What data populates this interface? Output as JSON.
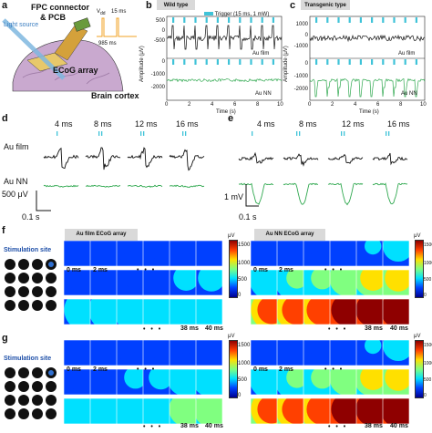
{
  "panels": {
    "a": {
      "letter": "a",
      "labels": {
        "light_source": "Light source",
        "fpc": "FPC connector",
        "pcb": "& PCB",
        "vdd": "V",
        "vdd_sub": "dd",
        "ms15": "15 ms",
        "ms985": "985 ms",
        "ecog": "ECoG array",
        "cortex": "Brain cortex"
      }
    },
    "b": {
      "letter": "b",
      "title": "Wild type",
      "legend_trigger": "Trigger (15 ms, 1 mW)",
      "ylabel": "Amplitude (μV)",
      "xlabel": "Time (s)",
      "yticks_top": [
        "500",
        "0",
        "-500"
      ],
      "yticks_bottom": [
        "0",
        "-1000",
        "-2000"
      ],
      "xticks": [
        "0",
        "2",
        "4",
        "6",
        "8",
        "10"
      ],
      "trace_top": "Au film",
      "trace_bottom": "Au NN"
    },
    "c": {
      "letter": "c",
      "title": "Transgenic type",
      "yticks_top": [
        "1000",
        "0",
        "-1000"
      ],
      "yticks_bottom": [
        "0",
        "-1000",
        "-2000"
      ],
      "xticks": [
        "0",
        "2",
        "4",
        "6",
        "8",
        "10"
      ],
      "ylabel": "Amplitude (μV)",
      "xlabel": "Time (s)",
      "trace_top": "Au film",
      "trace_bottom": "Au NN"
    },
    "d": {
      "letter": "d",
      "times": [
        "4 ms",
        "8 ms",
        "12 ms",
        "16 ms"
      ],
      "row_top": "Au film",
      "row_bottom": "Au NN",
      "scale_v": "500 μV",
      "scale_t": "0.1 s"
    },
    "e": {
      "letter": "e",
      "times": [
        "4 ms",
        "8 ms",
        "12 ms",
        "16 ms"
      ],
      "scale_v": "1 mV",
      "scale_t": "0.1 s"
    },
    "f": {
      "letter": "f",
      "header_left": "Au film ECoG array",
      "header_right": "Au NN ECoG array",
      "stim": "Stimulation site",
      "unit": "μV",
      "cb_ticks": [
        "1500",
        "1000",
        "500",
        "0"
      ],
      "row1_left": [
        "0 ms",
        "2 ms"
      ],
      "row1_right": [
        "0 ms",
        "2 ms"
      ],
      "row3_left": [
        "38 ms",
        "40 ms"
      ],
      "row3_right": [
        "38 ms",
        "40 ms"
      ],
      "dots": "• • •"
    },
    "g": {
      "letter": "g",
      "stim": "Stimulation site",
      "unit": "μV",
      "cb_ticks": [
        "1500",
        "1000",
        "500",
        "0"
      ],
      "row1_left": [
        "0 ms",
        "2 ms"
      ],
      "row1_right": [
        "0 ms",
        "2 ms"
      ],
      "row3_left": [
        "38 ms",
        "40 ms"
      ],
      "row3_right": [
        "38 ms",
        "40 ms"
      ],
      "dots": "• • •"
    }
  },
  "colors": {
    "trigger": "#3fc3d8",
    "trace_film": "#111111",
    "trace_nn": "#2fa84f",
    "cortex": "#c9a9cf",
    "beam": "#7fb8e0"
  }
}
